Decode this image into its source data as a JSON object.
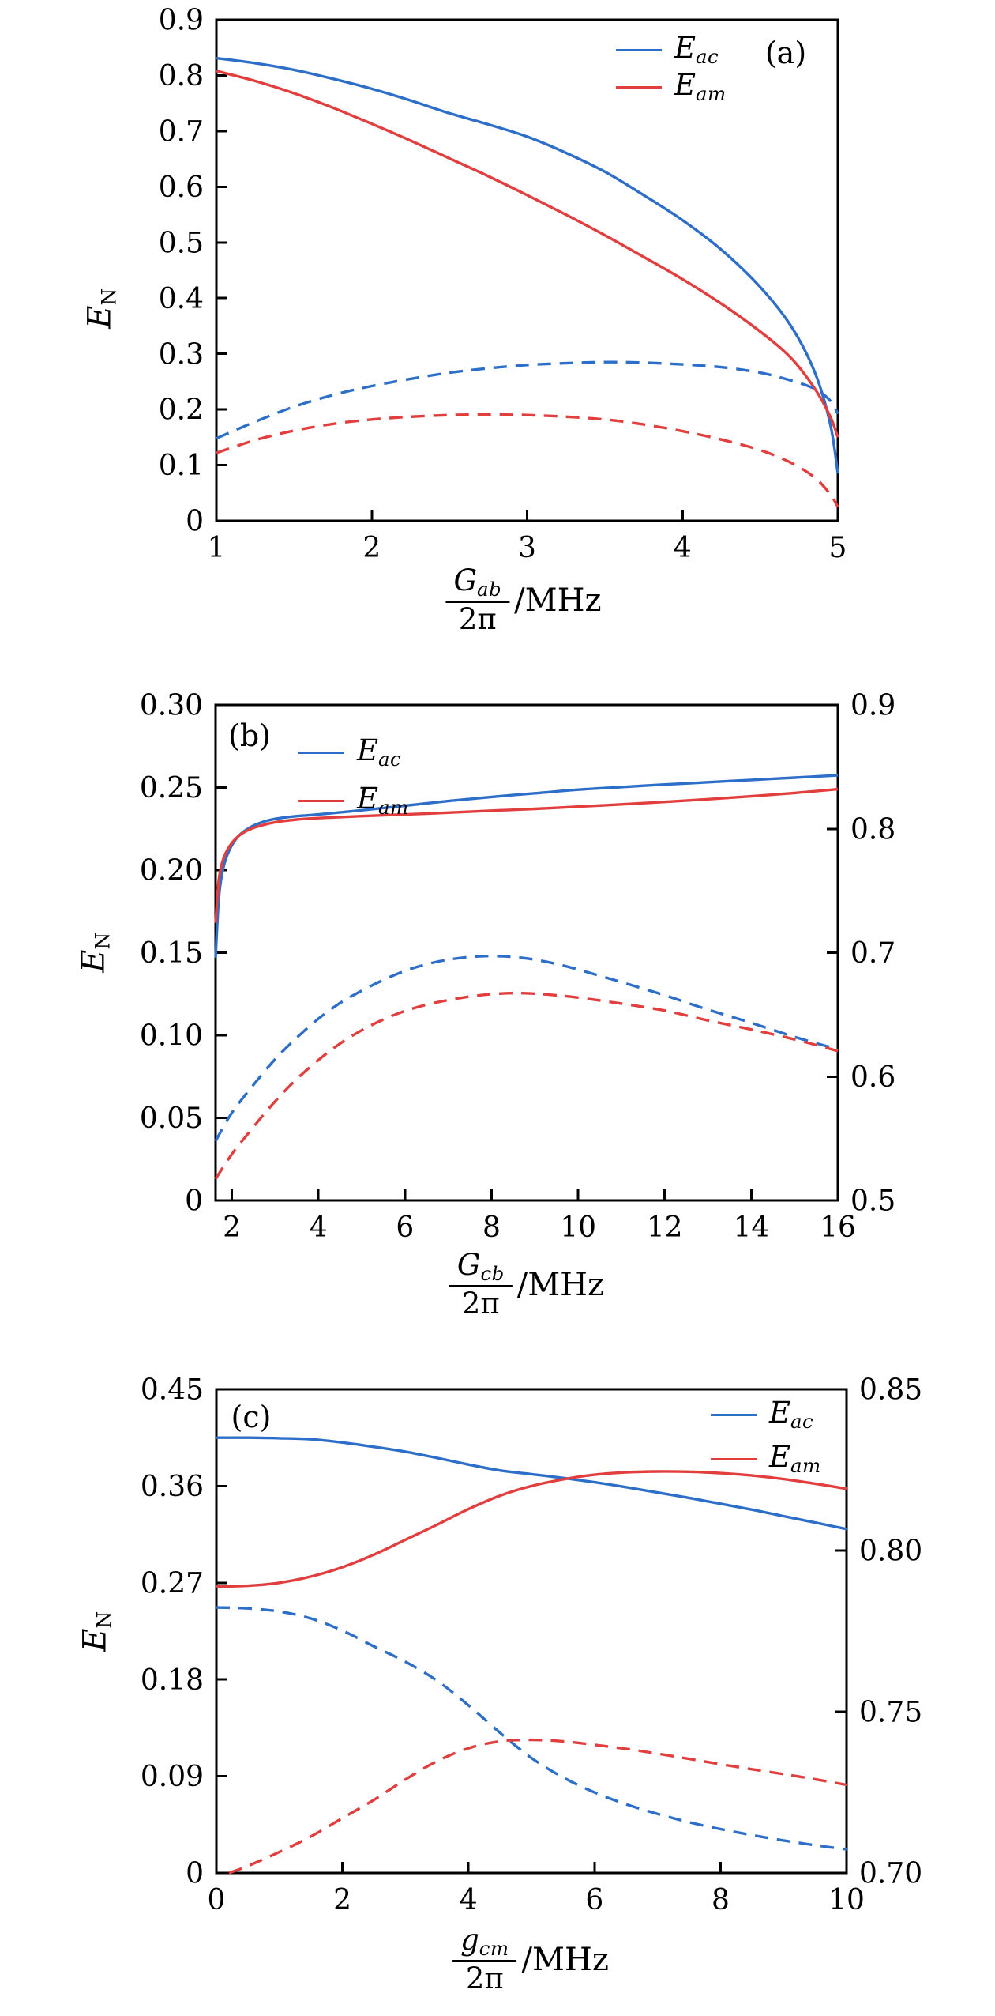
{
  "colors": {
    "blue": "#2d6ec9",
    "red": "#e23e3e",
    "axis": "#000000",
    "background": "#ffffff"
  },
  "chart_data": [
    {
      "type": "line",
      "panel_tag": "(a)",
      "title": "",
      "ylabel": {
        "main": "E",
        "sub": "N"
      },
      "xlabel": {
        "num": "G",
        "num_sub": "ab",
        "den": "2π",
        "unit": "/MHz"
      },
      "x_range": [
        1,
        5
      ],
      "x_ticks": [
        {
          "v": 1,
          "label": "1"
        },
        {
          "v": 2,
          "label": "2"
        },
        {
          "v": 3,
          "label": "3"
        },
        {
          "v": 4,
          "label": "4"
        },
        {
          "v": 5,
          "label": "5"
        }
      ],
      "y_left_range": [
        0,
        0.9
      ],
      "y_left_ticks": [
        {
          "v": 0,
          "label": "0"
        },
        {
          "v": 0.1,
          "label": "0.1"
        },
        {
          "v": 0.2,
          "label": "0.2"
        },
        {
          "v": 0.3,
          "label": "0.3"
        },
        {
          "v": 0.4,
          "label": "0.4"
        },
        {
          "v": 0.5,
          "label": "0.5"
        },
        {
          "v": 0.6,
          "label": "0.6"
        },
        {
          "v": 0.7,
          "label": "0.7"
        },
        {
          "v": 0.8,
          "label": "0.8"
        },
        {
          "v": 0.9,
          "label": "0.9"
        }
      ],
      "y_right_range": null,
      "y_right_ticks": [],
      "legend": {
        "position": "top-right",
        "items": [
          {
            "main": "E",
            "sub": "ac",
            "color": "blue",
            "style": "solid"
          },
          {
            "main": "E",
            "sub": "am",
            "color": "red",
            "style": "solid"
          }
        ]
      },
      "grid": false,
      "series": [
        {
          "name": "E_ac_solid",
          "color": "blue",
          "dash": false,
          "x": [
            1,
            1.25,
            1.5,
            1.75,
            2,
            2.25,
            2.5,
            2.75,
            3,
            3.25,
            3.5,
            3.75,
            4,
            4.25,
            4.5,
            4.7,
            4.85,
            4.95,
            5
          ],
          "y": [
            0.831,
            0.822,
            0.81,
            0.794,
            0.776,
            0.755,
            0.732,
            0.712,
            0.69,
            0.661,
            0.627,
            0.585,
            0.54,
            0.487,
            0.42,
            0.349,
            0.268,
            0.175,
            0.085
          ]
        },
        {
          "name": "E_am_solid",
          "color": "red",
          "dash": false,
          "x": [
            1,
            1.25,
            1.5,
            1.75,
            2,
            2.25,
            2.5,
            2.75,
            3,
            3.25,
            3.5,
            3.75,
            4,
            4.25,
            4.5,
            4.7,
            4.85,
            4.95,
            5
          ],
          "y": [
            0.808,
            0.79,
            0.768,
            0.742,
            0.713,
            0.683,
            0.651,
            0.619,
            0.585,
            0.55,
            0.513,
            0.474,
            0.434,
            0.39,
            0.34,
            0.292,
            0.238,
            0.188,
            0.15
          ]
        },
        {
          "name": "E_ac_dashed",
          "color": "blue",
          "dash": true,
          "x": [
            1,
            1.25,
            1.5,
            1.75,
            2,
            2.25,
            2.5,
            2.75,
            3,
            3.25,
            3.5,
            3.75,
            4,
            4.25,
            4.5,
            4.7,
            4.85,
            4.95,
            5
          ],
          "y": [
            0.148,
            0.178,
            0.205,
            0.226,
            0.242,
            0.255,
            0.266,
            0.274,
            0.28,
            0.283,
            0.285,
            0.284,
            0.281,
            0.276,
            0.266,
            0.252,
            0.237,
            0.216,
            0.192
          ]
        },
        {
          "name": "E_am_dashed",
          "color": "red",
          "dash": true,
          "x": [
            1,
            1.25,
            1.5,
            1.75,
            2,
            2.25,
            2.5,
            2.75,
            3,
            3.25,
            3.5,
            3.75,
            4,
            4.25,
            4.5,
            4.7,
            4.85,
            4.95,
            5
          ],
          "y": [
            0.122,
            0.145,
            0.162,
            0.174,
            0.182,
            0.187,
            0.19,
            0.191,
            0.19,
            0.187,
            0.182,
            0.173,
            0.161,
            0.146,
            0.127,
            0.104,
            0.078,
            0.048,
            0.025
          ]
        }
      ]
    },
    {
      "type": "line",
      "panel_tag": "(b)",
      "title": "",
      "ylabel": {
        "main": "E",
        "sub": "N"
      },
      "xlabel": {
        "num": "G",
        "num_sub": "cb",
        "den": "2π",
        "unit": "/MHz"
      },
      "x_range": [
        1.625,
        16
      ],
      "x_ticks": [
        {
          "v": 2,
          "label": "2"
        },
        {
          "v": 4,
          "label": "4"
        },
        {
          "v": 6,
          "label": "6"
        },
        {
          "v": 8,
          "label": "8"
        },
        {
          "v": 10,
          "label": "10"
        },
        {
          "v": 12,
          "label": "12"
        },
        {
          "v": 14,
          "label": "14"
        },
        {
          "v": 16,
          "label": "16"
        }
      ],
      "y_left_range": [
        0,
        0.3
      ],
      "y_left_ticks": [
        {
          "v": 0,
          "label": "0"
        },
        {
          "v": 0.05,
          "label": "0.05"
        },
        {
          "v": 0.1,
          "label": "0.10"
        },
        {
          "v": 0.15,
          "label": "0.15"
        },
        {
          "v": 0.2,
          "label": "0.20"
        },
        {
          "v": 0.25,
          "label": "0.25"
        },
        {
          "v": 0.3,
          "label": "0.30"
        }
      ],
      "y_right_range": [
        0.5,
        0.9
      ],
      "y_right_ticks": [
        {
          "v": 0.5,
          "label": "0.5"
        },
        {
          "v": 0.6,
          "label": "0.6"
        },
        {
          "v": 0.7,
          "label": "0.7"
        },
        {
          "v": 0.8,
          "label": "0.8"
        },
        {
          "v": 0.9,
          "label": "0.9"
        }
      ],
      "legend": {
        "position": "top-left",
        "items": [
          {
            "main": "E",
            "sub": "ac",
            "color": "blue",
            "style": "solid"
          },
          {
            "main": "E",
            "sub": "am",
            "color": "red",
            "style": "solid"
          }
        ]
      },
      "grid": false,
      "series": [
        {
          "name": "E_ac_solid",
          "color": "blue",
          "dash": false,
          "x": [
            1.625,
            1.7,
            1.8,
            1.95,
            2.15,
            2.4,
            2.7,
            3,
            3.5,
            4,
            5,
            6,
            7,
            8,
            9,
            10,
            11,
            12,
            13,
            14,
            15,
            16
          ],
          "y": [
            0.147,
            0.183,
            0.201,
            0.2125,
            0.2205,
            0.2255,
            0.229,
            0.231,
            0.2327,
            0.2337,
            0.2362,
            0.239,
            0.2418,
            0.2443,
            0.2465,
            0.2487,
            0.2503,
            0.2518,
            0.2532,
            0.2546,
            0.256,
            0.2574
          ]
        },
        {
          "name": "E_am_solid",
          "color": "red",
          "dash": false,
          "x": [
            1.625,
            1.7,
            1.8,
            1.95,
            2.15,
            2.4,
            2.7,
            3,
            3.5,
            4,
            5,
            6,
            7,
            8,
            9,
            10,
            11,
            12,
            13,
            14,
            15,
            16
          ],
          "y": [
            0.168,
            0.194,
            0.2065,
            0.2145,
            0.2205,
            0.2245,
            0.2272,
            0.229,
            0.2306,
            0.2315,
            0.2327,
            0.2337,
            0.2348,
            0.236,
            0.2371,
            0.2384,
            0.2398,
            0.2413,
            0.2429,
            0.2447,
            0.2467,
            0.249
          ]
        },
        {
          "name": "E_ac_dashed",
          "color": "blue",
          "dash": true,
          "x": [
            1.625,
            2,
            2.5,
            3,
            3.5,
            4,
            4.5,
            5,
            5.5,
            6,
            6.5,
            7,
            7.5,
            8,
            8.5,
            9,
            9.5,
            10,
            11,
            12,
            13,
            14,
            15,
            16
          ],
          "y": [
            0.036,
            0.053,
            0.07,
            0.0855,
            0.0985,
            0.11,
            0.1195,
            0.127,
            0.1335,
            0.139,
            0.143,
            0.1458,
            0.1474,
            0.148,
            0.1474,
            0.1458,
            0.1432,
            0.1398,
            0.1322,
            0.1242,
            0.1155,
            0.1075,
            0.099,
            0.0915
          ]
        },
        {
          "name": "E_am_dashed",
          "color": "red",
          "dash": true,
          "x": [
            1.625,
            2,
            2.5,
            3,
            3.5,
            4,
            4.5,
            5,
            5.5,
            6,
            6.5,
            7,
            7.5,
            8,
            8.5,
            9,
            9.5,
            10,
            11,
            12,
            13,
            14,
            15,
            16
          ],
          "y": [
            0.013,
            0.028,
            0.0445,
            0.06,
            0.0735,
            0.085,
            0.095,
            0.103,
            0.1095,
            0.1147,
            0.1185,
            0.1213,
            0.1235,
            0.1249,
            0.1255,
            0.1252,
            0.1242,
            0.1228,
            0.1192,
            0.115,
            0.109,
            0.1035,
            0.0975,
            0.0905
          ]
        }
      ]
    },
    {
      "type": "line",
      "panel_tag": "(c)",
      "title": "",
      "ylabel": {
        "main": "E",
        "sub": "N"
      },
      "xlabel": {
        "num": "g",
        "num_sub": "cm",
        "den": "2π",
        "unit": "/MHz"
      },
      "x_range": [
        0,
        10
      ],
      "x_ticks": [
        {
          "v": 0,
          "label": "0"
        },
        {
          "v": 2,
          "label": "2"
        },
        {
          "v": 4,
          "label": "4"
        },
        {
          "v": 6,
          "label": "6"
        },
        {
          "v": 8,
          "label": "8"
        },
        {
          "v": 10,
          "label": "10"
        }
      ],
      "y_left_range": [
        0,
        0.45
      ],
      "y_left_ticks": [
        {
          "v": 0,
          "label": "0"
        },
        {
          "v": 0.09,
          "label": "0.09"
        },
        {
          "v": 0.18,
          "label": "0.18"
        },
        {
          "v": 0.27,
          "label": "0.27"
        },
        {
          "v": 0.36,
          "label": "0.36"
        },
        {
          "v": 0.45,
          "label": "0.45"
        }
      ],
      "y_right_range": [
        0.7,
        0.85
      ],
      "y_right_ticks": [
        {
          "v": 0.7,
          "label": "0.70"
        },
        {
          "v": 0.75,
          "label": "0.75"
        },
        {
          "v": 0.8,
          "label": "0.80"
        },
        {
          "v": 0.85,
          "label": "0.85"
        }
      ],
      "legend": {
        "position": "top-right",
        "items": [
          {
            "main": "E",
            "sub": "ac",
            "color": "blue",
            "style": "solid"
          },
          {
            "main": "E",
            "sub": "am",
            "color": "red",
            "style": "solid"
          }
        ]
      },
      "grid": false,
      "series": [
        {
          "name": "E_ac_solid",
          "color": "blue",
          "dash": false,
          "x": [
            0,
            0.5,
            1,
            1.5,
            2,
            2.5,
            3,
            3.5,
            4,
            4.5,
            5,
            5.5,
            6,
            6.5,
            7,
            7.5,
            8,
            8.5,
            9,
            9.5,
            10
          ],
          "y": [
            0.405,
            0.405,
            0.4045,
            0.4035,
            0.4005,
            0.3965,
            0.392,
            0.3862,
            0.38,
            0.3745,
            0.371,
            0.3675,
            0.3635,
            0.359,
            0.354,
            0.349,
            0.3435,
            0.338,
            0.332,
            0.326,
            0.32
          ]
        },
        {
          "name": "E_am_solid",
          "color": "red",
          "dash": false,
          "x": [
            0,
            0.5,
            1,
            1.5,
            2,
            2.5,
            3,
            3.5,
            4,
            4.5,
            5,
            5.5,
            6,
            6.5,
            7,
            7.5,
            8,
            8.5,
            9,
            9.5,
            10
          ],
          "y": [
            0.2665,
            0.2672,
            0.27,
            0.2758,
            0.2845,
            0.2962,
            0.31,
            0.324,
            0.3385,
            0.351,
            0.36,
            0.3662,
            0.3705,
            0.3727,
            0.3735,
            0.3733,
            0.372,
            0.3698,
            0.3665,
            0.3622,
            0.3575
          ]
        },
        {
          "name": "E_ac_dashed",
          "color": "blue",
          "dash": true,
          "x": [
            0,
            0.5,
            1,
            1.5,
            2,
            2.5,
            3,
            3.5,
            4,
            4.5,
            5,
            5.5,
            6,
            6.5,
            7,
            7.5,
            8,
            8.5,
            9,
            9.5,
            10
          ],
          "y": [
            0.247,
            0.2462,
            0.2432,
            0.2368,
            0.2255,
            0.2108,
            0.1965,
            0.179,
            0.156,
            0.1305,
            0.107,
            0.089,
            0.075,
            0.064,
            0.055,
            0.0472,
            0.0408,
            0.0352,
            0.0302,
            0.0258,
            0.022
          ]
        },
        {
          "name": "E_am_dashed",
          "color": "red",
          "dash": true,
          "x": [
            0.2,
            0.5,
            1,
            1.5,
            2,
            2.5,
            3,
            3.5,
            4,
            4.5,
            5,
            5.5,
            6,
            6.5,
            7,
            7.5,
            8,
            8.5,
            9,
            9.5,
            10
          ],
          "y": [
            0,
            0.0065,
            0.0195,
            0.034,
            0.051,
            0.068,
            0.087,
            0.104,
            0.116,
            0.1225,
            0.1238,
            0.1225,
            0.1192,
            0.1155,
            0.111,
            0.1062,
            0.1012,
            0.0965,
            0.092,
            0.0872,
            0.082
          ]
        }
      ]
    }
  ]
}
